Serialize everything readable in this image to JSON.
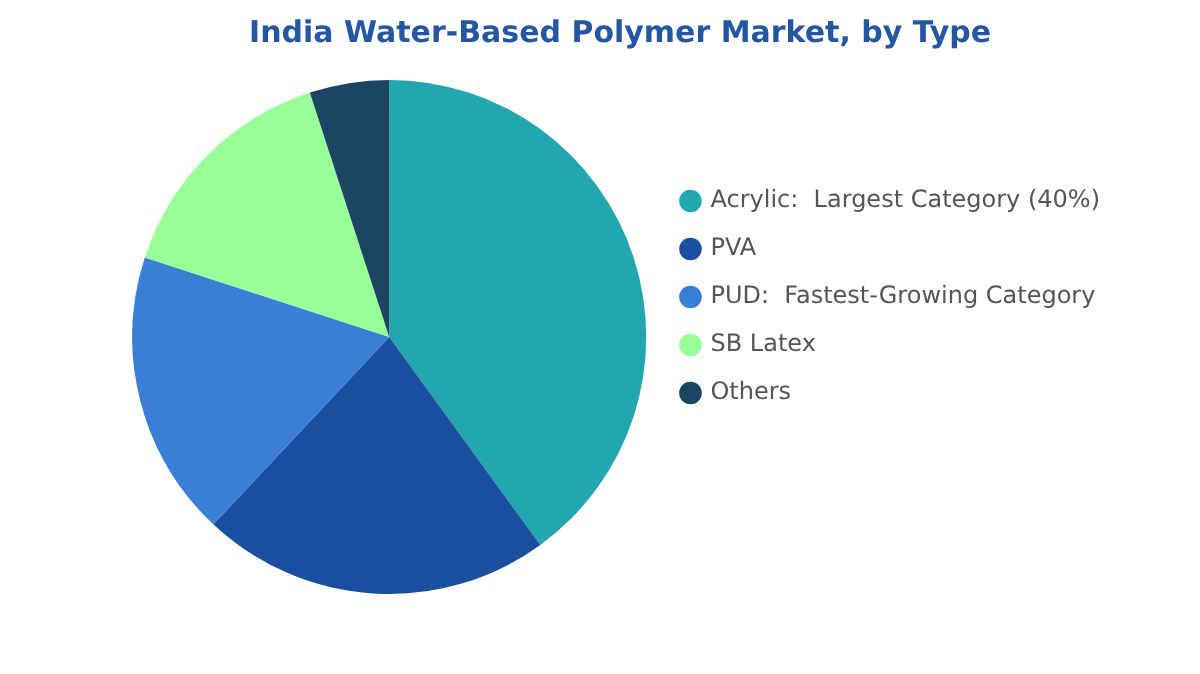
{
  "chart_data": {
    "type": "pie",
    "title": "India Water-Based Polymer Market, by Type",
    "categories": [
      "Acrylic:  Largest Category (40%)",
      "PVA",
      "PUD:  Fastest-Growing Category",
      "SB Latex",
      "Others"
    ],
    "values": [
      40,
      22,
      18,
      15,
      5
    ],
    "colors": [
      "#22a6b0",
      "#1a4fa0",
      "#3a7fd5",
      "#99ff99",
      "#1a4664"
    ],
    "legend": "right"
  }
}
